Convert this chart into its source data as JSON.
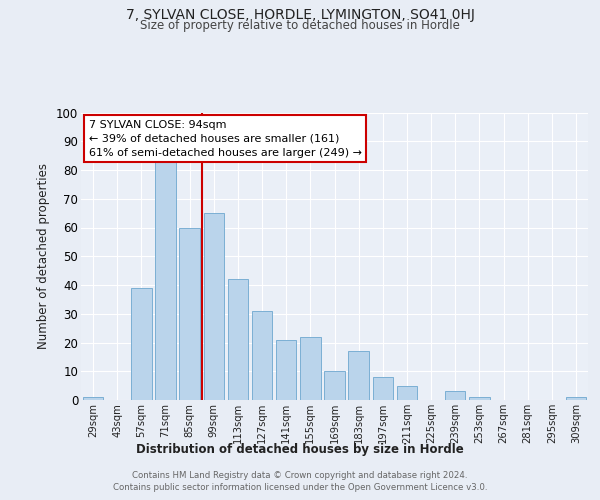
{
  "title": "7, SYLVAN CLOSE, HORDLE, LYMINGTON, SO41 0HJ",
  "subtitle": "Size of property relative to detached houses in Hordle",
  "xlabel": "Distribution of detached houses by size in Hordle",
  "ylabel": "Number of detached properties",
  "bar_color": "#bad4eb",
  "bar_edge_color": "#7bafd4",
  "background_color": "#e8edf5",
  "plot_bg_color": "#eaeff7",
  "grid_color": "#ffffff",
  "categories": [
    "29sqm",
    "43sqm",
    "57sqm",
    "71sqm",
    "85sqm",
    "99sqm",
    "113sqm",
    "127sqm",
    "141sqm",
    "155sqm",
    "169sqm",
    "183sqm",
    "197sqm",
    "211sqm",
    "225sqm",
    "239sqm",
    "253sqm",
    "267sqm",
    "281sqm",
    "295sqm",
    "309sqm"
  ],
  "values": [
    1,
    0,
    39,
    83,
    60,
    65,
    42,
    31,
    21,
    22,
    10,
    17,
    8,
    5,
    0,
    3,
    1,
    0,
    0,
    0,
    1
  ],
  "vline_color": "#cc0000",
  "vline_pos": 4.5,
  "annotation_title": "7 SYLVAN CLOSE: 94sqm",
  "annotation_line1": "← 39% of detached houses are smaller (161)",
  "annotation_line2": "61% of semi-detached houses are larger (249) →",
  "annotation_box_color": "#ffffff",
  "annotation_box_edge": "#cc0000",
  "ylim": [
    0,
    100
  ],
  "yticks": [
    0,
    10,
    20,
    30,
    40,
    50,
    60,
    70,
    80,
    90,
    100
  ],
  "footer_line1": "Contains HM Land Registry data © Crown copyright and database right 2024.",
  "footer_line2": "Contains public sector information licensed under the Open Government Licence v3.0."
}
